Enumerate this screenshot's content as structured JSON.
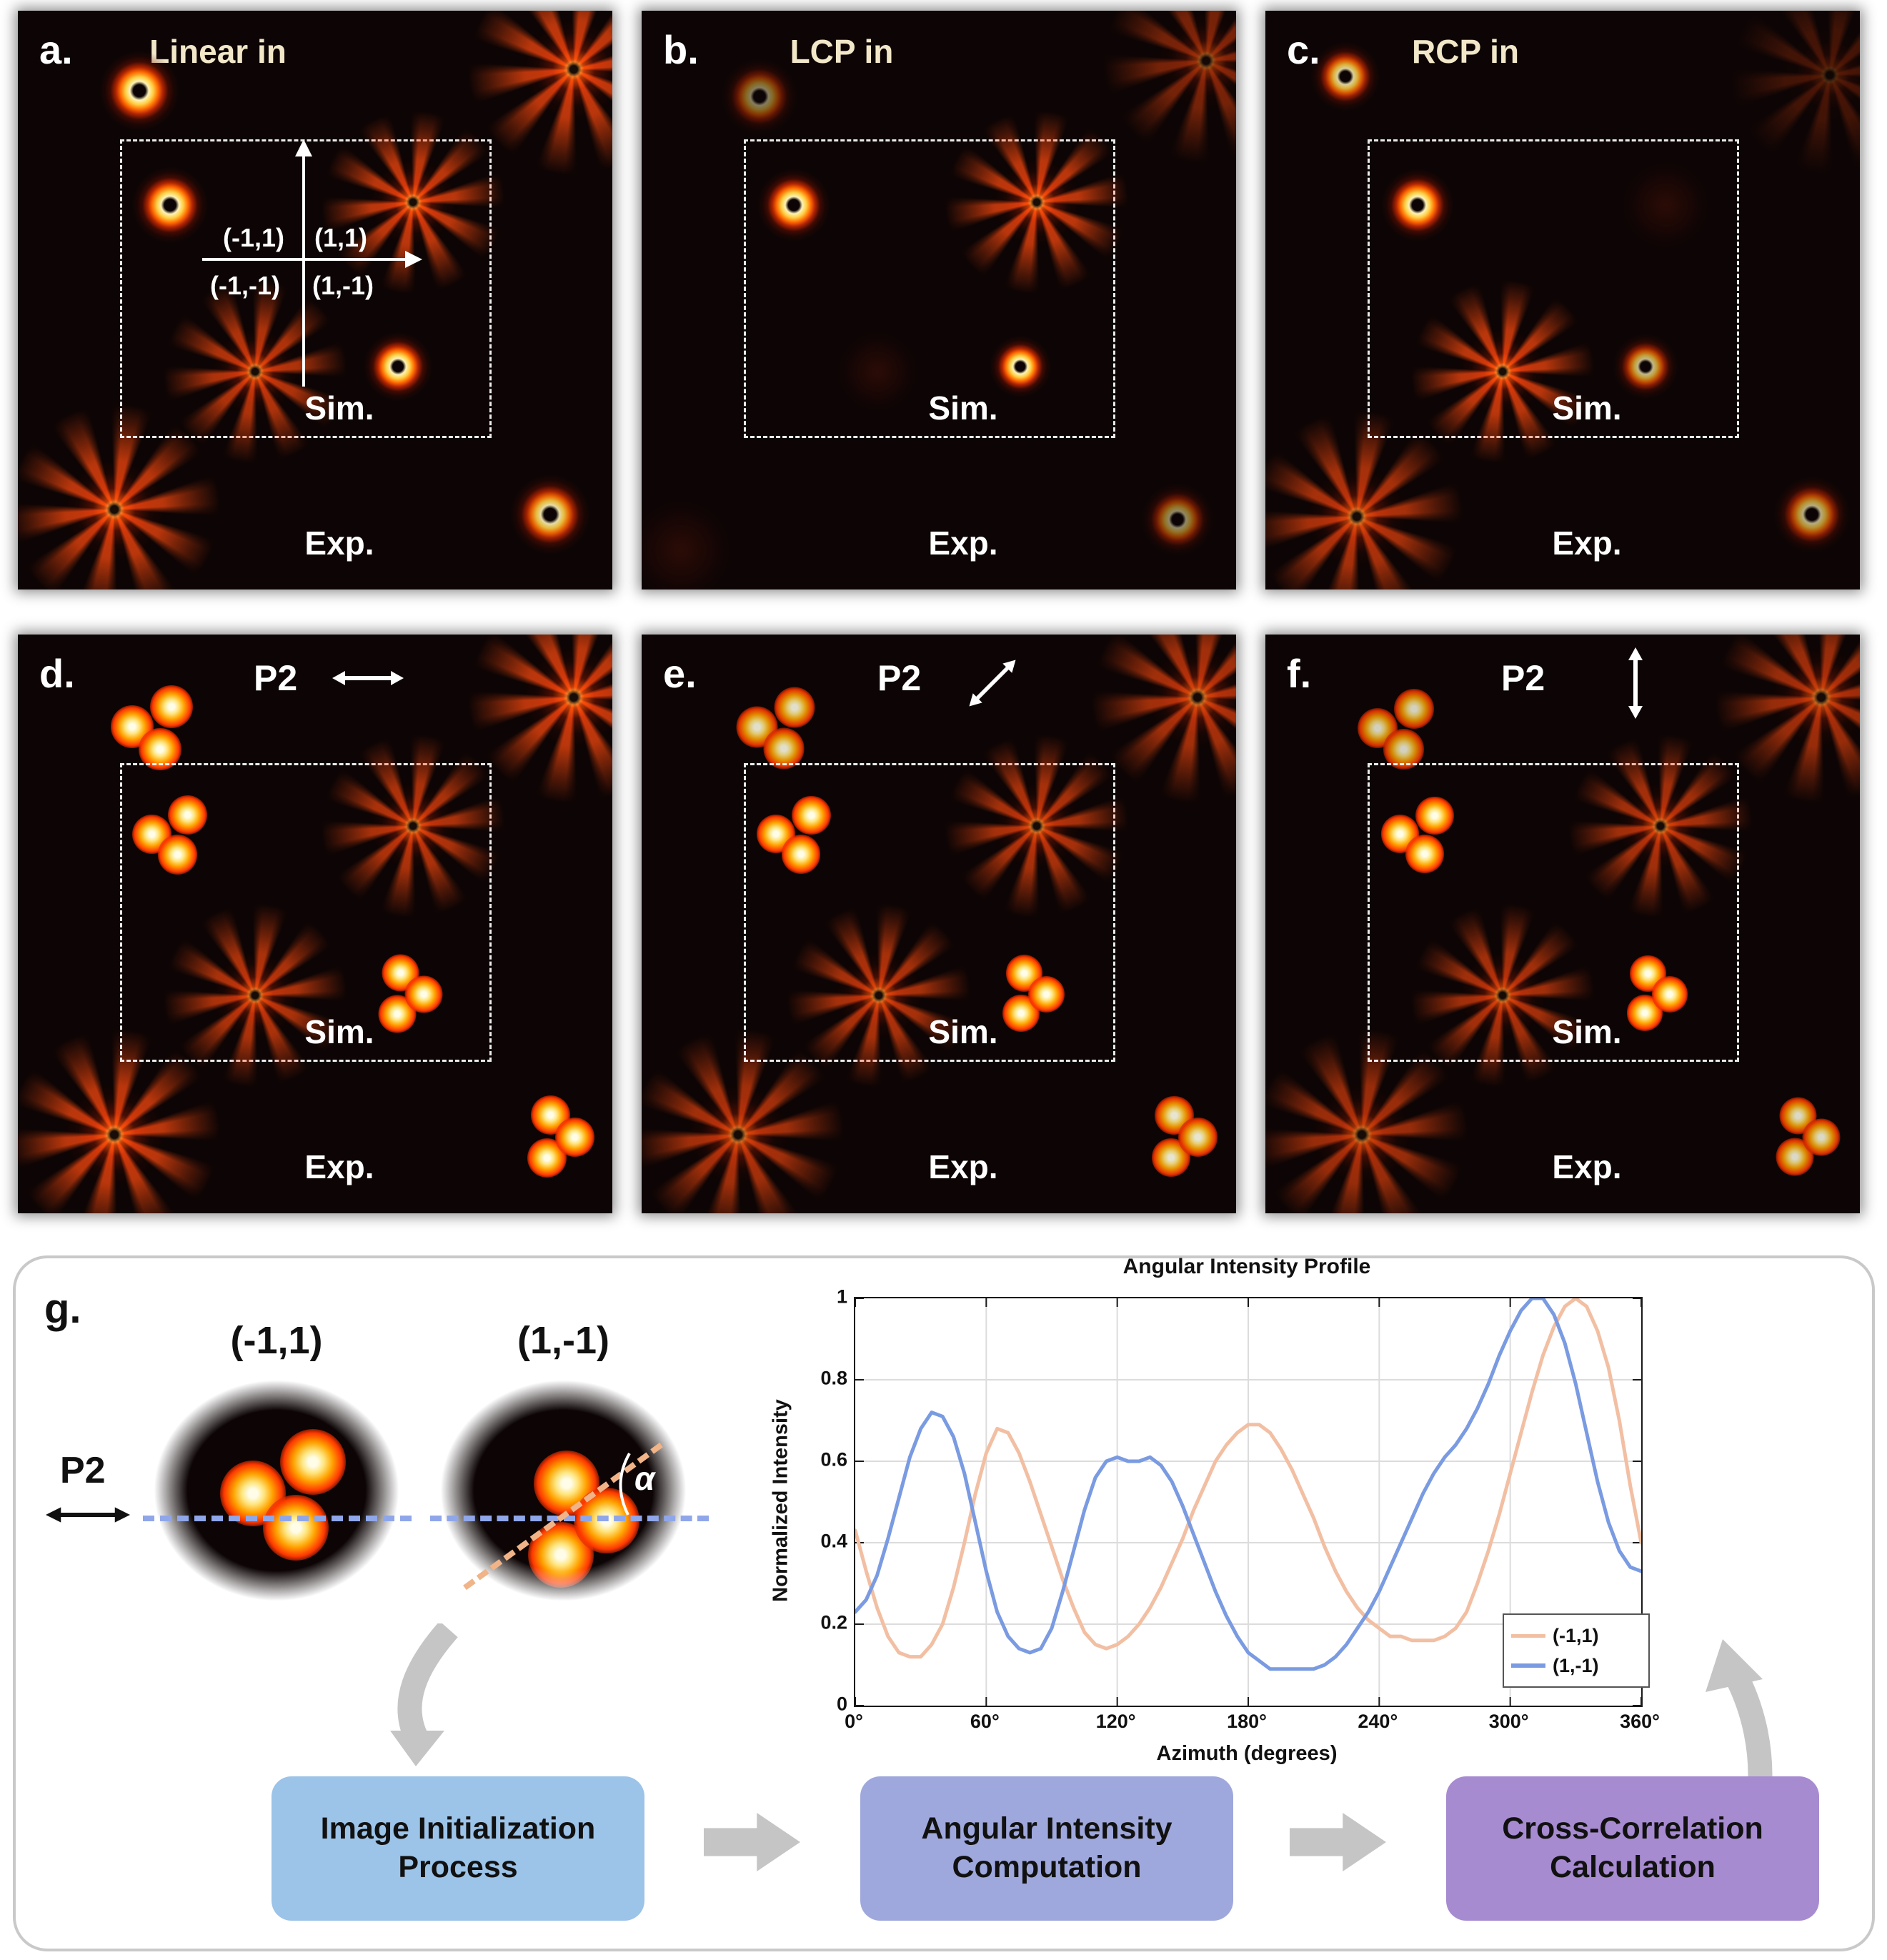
{
  "labels": {
    "sim": "Sim.",
    "exp": "Exp."
  },
  "panels_row1": [
    {
      "letter": "a.",
      "title": "Linear in",
      "quadrants": {
        "tl": "(-1,1)",
        "tr": "(1,1)",
        "bl": "(-1,-1)",
        "br": "(1,-1)"
      }
    },
    {
      "letter": "b.",
      "title": "LCP in"
    },
    {
      "letter": "c.",
      "title": "RCP in"
    }
  ],
  "panels_row2": [
    {
      "letter": "d.",
      "title": "P2",
      "arrow_direction": "horizontal"
    },
    {
      "letter": "e.",
      "title": "P2",
      "arrow_direction": "diagonal"
    },
    {
      "letter": "f.",
      "title": "P2",
      "arrow_direction": "vertical"
    }
  ],
  "panel_g": {
    "letter": "g.",
    "left_image_label": "(-1,1)",
    "right_image_label": "(1,-1)",
    "polarizer_label": "P2",
    "alpha_label": "α",
    "flow_boxes": [
      {
        "line1": "Image Initialization",
        "line2": "Process",
        "color": "#9CC3E8"
      },
      {
        "line1": "Angular Intensity",
        "line2": "Computation",
        "color": "#9FA8DC"
      },
      {
        "line1": "Cross-Correlation",
        "line2": "Calculation",
        "color": "#A78BD0"
      }
    ]
  },
  "chart_data": {
    "type": "line",
    "title": "Angular Intensity Profile",
    "xlabel": "Azimuth (degrees)",
    "ylabel": "Normalized Intensity",
    "xlim": [
      0,
      360
    ],
    "ylim": [
      0,
      1
    ],
    "xticks": [
      0,
      60,
      120,
      180,
      240,
      300,
      360
    ],
    "xtick_labels": [
      "0°",
      "60°",
      "120°",
      "180°",
      "240°",
      "300°",
      "360°"
    ],
    "yticks": [
      0,
      0.2,
      0.4,
      0.6,
      0.8,
      1
    ],
    "ytick_labels": [
      "0",
      "0.2",
      "0.4",
      "0.6",
      "0.8",
      "1"
    ],
    "grid": true,
    "legend_position": "lower right",
    "x_start": 0,
    "x_step": 5,
    "series": [
      {
        "name": "(-1,1)",
        "color": "#F2BFA3",
        "values": [
          0.43,
          0.33,
          0.24,
          0.17,
          0.13,
          0.12,
          0.12,
          0.15,
          0.2,
          0.29,
          0.4,
          0.52,
          0.62,
          0.68,
          0.67,
          0.62,
          0.55,
          0.47,
          0.39,
          0.31,
          0.24,
          0.18,
          0.15,
          0.14,
          0.15,
          0.17,
          0.2,
          0.24,
          0.29,
          0.35,
          0.41,
          0.48,
          0.54,
          0.6,
          0.64,
          0.67,
          0.69,
          0.69,
          0.67,
          0.63,
          0.58,
          0.52,
          0.46,
          0.39,
          0.33,
          0.28,
          0.24,
          0.21,
          0.19,
          0.17,
          0.17,
          0.16,
          0.16,
          0.16,
          0.17,
          0.19,
          0.23,
          0.3,
          0.38,
          0.47,
          0.57,
          0.67,
          0.77,
          0.86,
          0.93,
          0.98,
          1.0,
          0.98,
          0.92,
          0.83,
          0.7,
          0.54,
          0.4
        ]
      },
      {
        "name": "(1,-1)",
        "color": "#7A9BE1",
        "values": [
          0.23,
          0.26,
          0.32,
          0.41,
          0.51,
          0.61,
          0.68,
          0.72,
          0.71,
          0.66,
          0.57,
          0.45,
          0.33,
          0.23,
          0.17,
          0.14,
          0.13,
          0.14,
          0.19,
          0.28,
          0.38,
          0.48,
          0.56,
          0.6,
          0.61,
          0.6,
          0.6,
          0.61,
          0.59,
          0.55,
          0.49,
          0.42,
          0.35,
          0.28,
          0.22,
          0.17,
          0.13,
          0.11,
          0.09,
          0.09,
          0.09,
          0.09,
          0.09,
          0.1,
          0.12,
          0.15,
          0.19,
          0.23,
          0.28,
          0.34,
          0.4,
          0.46,
          0.52,
          0.57,
          0.61,
          0.64,
          0.68,
          0.73,
          0.79,
          0.86,
          0.92,
          0.97,
          1.0,
          1.0,
          0.96,
          0.89,
          0.79,
          0.67,
          0.55,
          0.45,
          0.38,
          0.34,
          0.33
        ]
      }
    ]
  },
  "colors": {
    "panel_background": "#0D0505",
    "title_cream": "#F2E8C9",
    "blue_dashed_line": "#8FA6E9",
    "orange_dashed_line": "#F0B488",
    "gray_arrow": "#C5C5C5",
    "series_orange": "#F2BFA3",
    "series_blue": "#7A9BE1"
  }
}
